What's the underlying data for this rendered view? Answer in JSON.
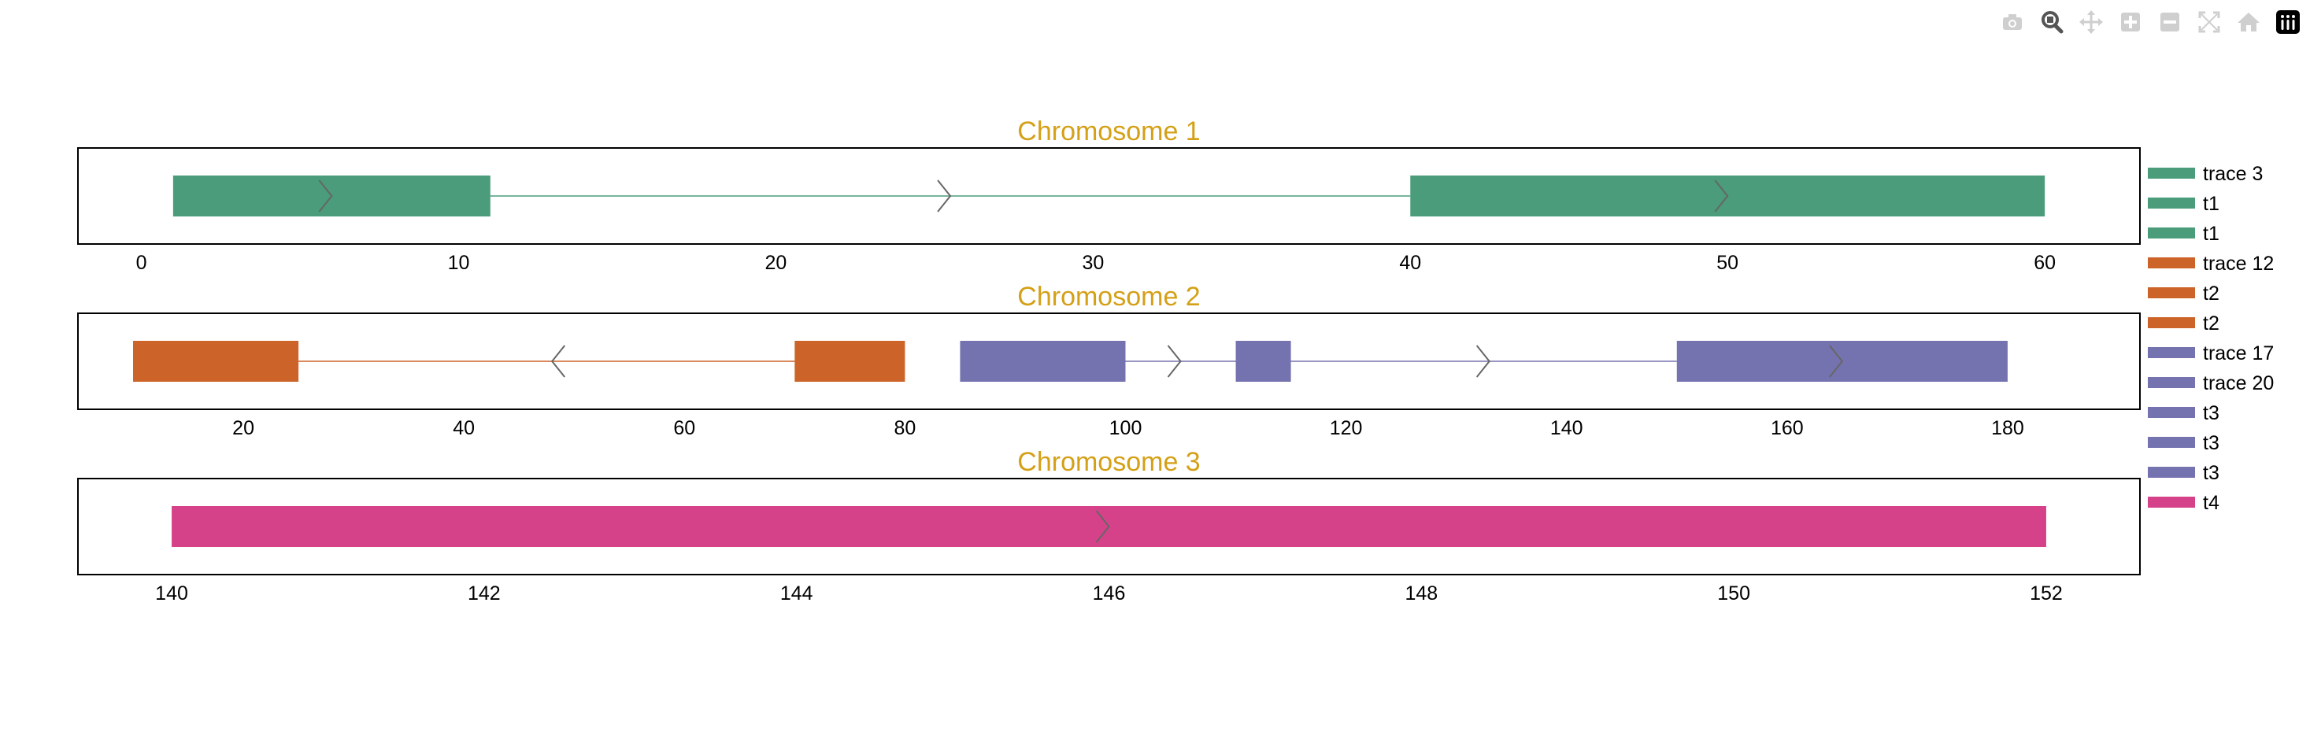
{
  "toolbar": [
    {
      "name": "camera-icon",
      "active": false
    },
    {
      "name": "zoom-icon",
      "active": true
    },
    {
      "name": "pan-icon",
      "active": false
    },
    {
      "name": "zoom-in-icon",
      "active": false
    },
    {
      "name": "zoom-out-icon",
      "active": false
    },
    {
      "name": "autoscale-icon",
      "active": false
    },
    {
      "name": "home-icon",
      "active": false
    },
    {
      "name": "plotly-logo-icon",
      "active": false
    }
  ],
  "colors": {
    "title": "#d4a017",
    "t1": "#4a9c7a",
    "t2": "#cc6328",
    "t3": "#7573af",
    "t4": "#d64289",
    "arrow": "#666666"
  },
  "chart_data": [
    {
      "type": "bar",
      "title": "Chromosome 1",
      "xlim": [
        -2,
        63
      ],
      "xticks": [
        0,
        10,
        20,
        30,
        40,
        50,
        60
      ],
      "introns": [
        {
          "start": 11,
          "end": 40,
          "color_key": "t1"
        }
      ],
      "exons": [
        {
          "start": 1,
          "end": 11,
          "color_key": "t1"
        },
        {
          "start": 40,
          "end": 60,
          "color_key": "t1"
        }
      ],
      "arrows": [
        {
          "x": 6,
          "dir": 1
        },
        {
          "x": 25.5,
          "dir": 1
        },
        {
          "x": 50,
          "dir": 1
        }
      ]
    },
    {
      "type": "bar",
      "title": "Chromosome 2",
      "xlim": [
        5,
        192
      ],
      "xticks": [
        20,
        40,
        60,
        80,
        100,
        120,
        140,
        160,
        180
      ],
      "introns": [
        {
          "start": 25,
          "end": 70,
          "color_key": "t2"
        },
        {
          "start": 100,
          "end": 150,
          "color_key": "t3"
        }
      ],
      "exons": [
        {
          "start": 10,
          "end": 25,
          "color_key": "t2"
        },
        {
          "start": 70,
          "end": 80,
          "color_key": "t2"
        },
        {
          "start": 85,
          "end": 100,
          "color_key": "t3"
        },
        {
          "start": 110,
          "end": 115,
          "color_key": "t3"
        },
        {
          "start": 150,
          "end": 180,
          "color_key": "t3"
        }
      ],
      "arrows": [
        {
          "x": 48,
          "dir": -1
        },
        {
          "x": 105,
          "dir": 1
        },
        {
          "x": 133,
          "dir": 1
        },
        {
          "x": 165,
          "dir": 1
        }
      ]
    },
    {
      "type": "bar",
      "title": "Chromosome 3",
      "xlim": [
        139.4,
        152.6
      ],
      "xticks": [
        140,
        142,
        144,
        146,
        148,
        150,
        152
      ],
      "introns": [],
      "exons": [
        {
          "start": 140,
          "end": 152,
          "color_key": "t4"
        }
      ],
      "arrows": [
        {
          "x": 146,
          "dir": 1
        }
      ]
    }
  ],
  "legend": [
    {
      "label": "trace 3",
      "color_key": "t1"
    },
    {
      "label": "t1",
      "color_key": "t1"
    },
    {
      "label": "t1",
      "color_key": "t1"
    },
    {
      "label": "trace 12",
      "color_key": "t2"
    },
    {
      "label": "t2",
      "color_key": "t2"
    },
    {
      "label": "t2",
      "color_key": "t2"
    },
    {
      "label": "trace 17",
      "color_key": "t3"
    },
    {
      "label": "trace 20",
      "color_key": "t3"
    },
    {
      "label": "t3",
      "color_key": "t3"
    },
    {
      "label": "t3",
      "color_key": "t3"
    },
    {
      "label": "t3",
      "color_key": "t3"
    },
    {
      "label": "t4",
      "color_key": "t4"
    }
  ]
}
